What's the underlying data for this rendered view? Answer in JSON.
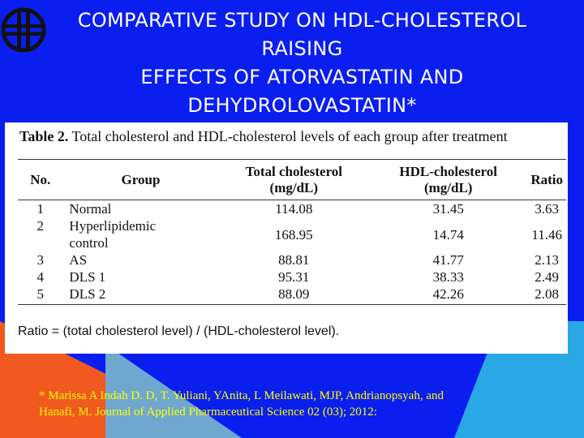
{
  "slide": {
    "title_lines": [
      "COMPARATIVE STUDY ON HDL-CHOLESTEROL",
      "RAISING",
      "EFFECTS OF ATORVASTATIN AND",
      "DEHYDROLOVASTATIN*"
    ],
    "logo_icon": "circle-cross-logo-icon",
    "colors": {
      "background": "#0a1ef0",
      "title_text": "#ffffff",
      "reference_text": "#ffff00",
      "accent_orange": "#f05a1e",
      "accent_light_blue": "#2aa8e6"
    }
  },
  "table": {
    "caption_label": "Table 2.",
    "caption_text": "Total cholesterol and HDL-cholesterol levels of each group after treatment",
    "headers": {
      "no": "No.",
      "group": "Group",
      "tc_line1": "Total cholesterol",
      "tc_line2": "(mg/dL)",
      "hdl_line1": "HDL-cholesterol",
      "hdl_line2": "(mg/dL)",
      "ratio": "Ratio"
    },
    "rows": [
      {
        "no": "1",
        "group_line1": "Normal",
        "group_line2": "",
        "tc": "114.08",
        "hdl": "31.45",
        "ratio": "3.63"
      },
      {
        "no": "2",
        "group_line1": "Hyperlipidemic",
        "group_line2": "control",
        "tc": "168.95",
        "hdl": "14.74",
        "ratio": "11.46"
      },
      {
        "no": "3",
        "group_line1": "AS",
        "group_line2": "",
        "tc": "88.81",
        "hdl": "41.77",
        "ratio": "2.13"
      },
      {
        "no": "4",
        "group_line1": "DLS 1",
        "group_line2": "",
        "tc": "95.31",
        "hdl": "38.33",
        "ratio": "2.49"
      },
      {
        "no": "5",
        "group_line1": "DLS 2",
        "group_line2": "",
        "tc": "88.09",
        "hdl": "42.26",
        "ratio": "2.08"
      }
    ],
    "ratio_note": "Ratio = (total cholesterol level) / (HDL-cholesterol level)."
  },
  "reference": {
    "line1": "* Marissa A Indah D. D, T. Yuliani, YAnita, L Meilawati, MJP, Andrianopsyah, and",
    "line2": "Hanafi, M.  Journal of Applied Pharmaceutical Science 02 (03); 2012:"
  }
}
